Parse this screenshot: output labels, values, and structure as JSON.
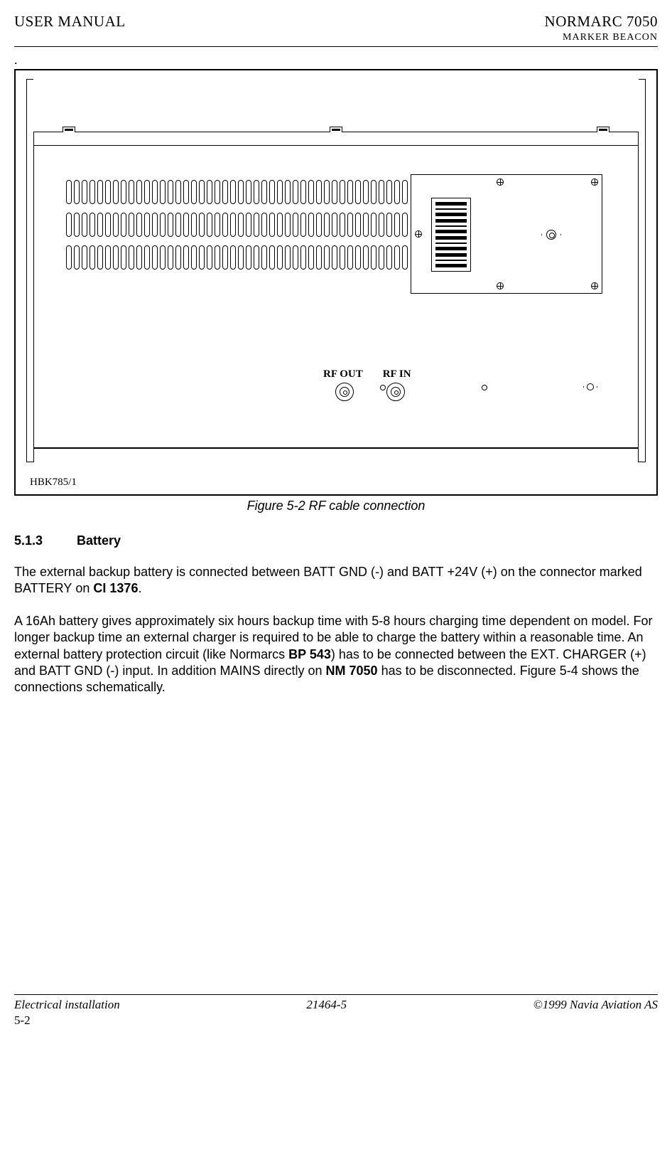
{
  "header": {
    "left": "USER MANUAL",
    "right_title": "NORMARC 7050",
    "right_sub": "MARKER BEACON"
  },
  "figure": {
    "label": "HBK785/1",
    "rf_out": "RF OUT",
    "rf_in": "RF IN",
    "caption": "Figure 5-2 RF cable connection"
  },
  "section": {
    "num": "5.1.3",
    "title": "Battery"
  },
  "para1": {
    "t1": "The external backup battery is connected between B",
    "sc1": "ATT",
    "t2": " G",
    "sc2": "ND",
    "t3": " (-) and B",
    "sc3": "ATT",
    "t4": " +24V (+) on the connector marked B",
    "sc4": "ATTERY",
    "t5": " on ",
    "b1": "CI 1376",
    "t6": "."
  },
  "para2": {
    "t1": "A 16Ah battery gives approximately six hours backup time with 5-8 hours charging time dependent on model.  For longer backup time an external charger is required to be able to charge the battery within a reasonable time.  An external battery protection circuit (like Normarcs ",
    "b1": "BP 543",
    "t2": ") has to be connected between the E",
    "sc1": "XT",
    "t3": ". C",
    "sc2": "HARGER",
    "t4": " (+) and BATT GND (-) input.  In addition M",
    "sc3": "AINS",
    "t5": " directly on ",
    "b2": "NM 7050",
    "t6": " has to be disconnected.  Figure 5-4 shows the connections schematically."
  },
  "footer": {
    "left": "Electrical installation",
    "center": "21464-5",
    "right": "©1999 Navia Aviation AS",
    "pagenum": "5-2"
  }
}
